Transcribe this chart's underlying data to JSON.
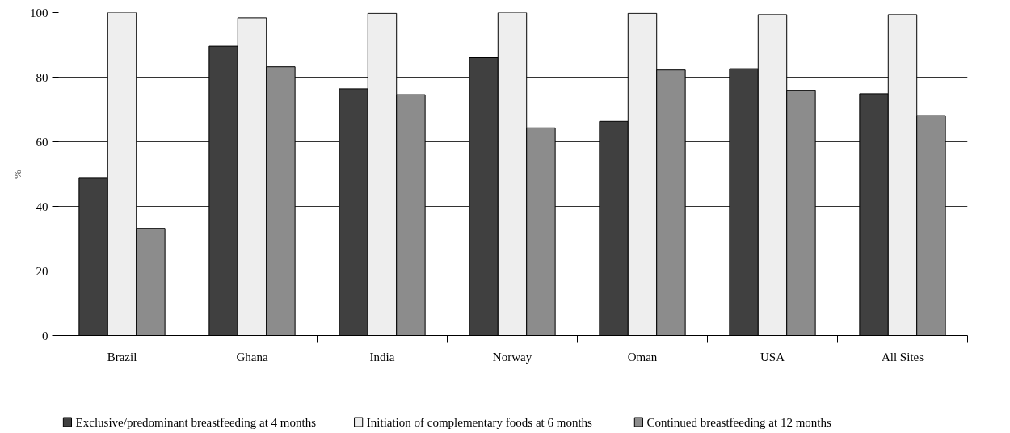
{
  "chart_data": {
    "type": "bar",
    "ylabel": "%",
    "categories": [
      "Brazil",
      "Ghana",
      "India",
      "Norway",
      "Oman",
      "USA",
      "All Sites"
    ],
    "series": [
      {
        "name": "Exclusive/predominant breastfeeding at 4 months",
        "color": "#404040",
        "values": [
          48.9,
          89.6,
          76.4,
          86.0,
          66.3,
          82.6,
          74.9
        ]
      },
      {
        "name": "Initiation of complementary foods at 6 months",
        "color": "#eeeeee",
        "values": [
          100,
          98.4,
          99.8,
          100,
          99.8,
          99.4,
          99.4
        ]
      },
      {
        "name": "Continued breastfeeding at 12 months",
        "color": "#8c8c8c",
        "values": [
          33.2,
          83.2,
          74.6,
          64.3,
          82.2,
          75.8,
          68.1
        ]
      }
    ],
    "ylim": [
      0,
      100
    ],
    "yticks": [
      0,
      20,
      40,
      60,
      80,
      100
    ],
    "grid": "y",
    "legend": "bottom"
  }
}
